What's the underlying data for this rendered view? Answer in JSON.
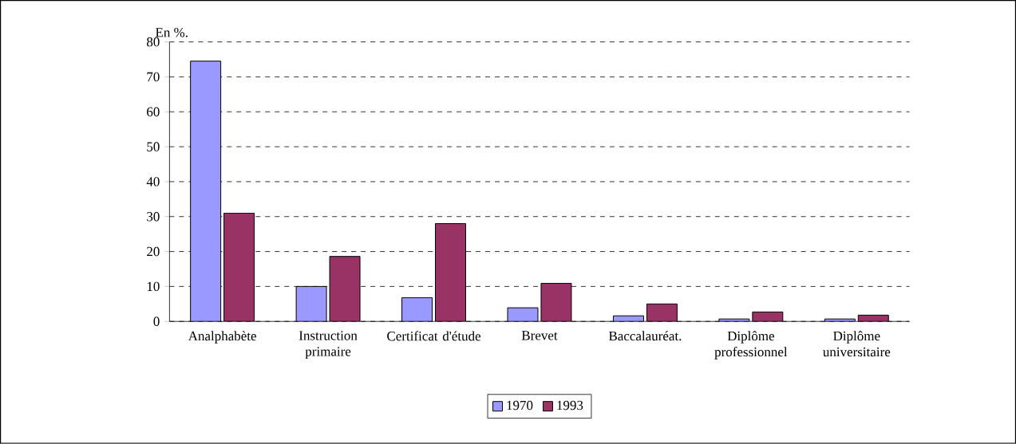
{
  "chart_data": {
    "type": "bar",
    "ylabel": "En %.",
    "categories": [
      "Analphabète",
      "Instruction primaire",
      "Certificat d'étude",
      "Brevet",
      "Baccalauréat.",
      "Diplôme professionnel",
      "Diplôme universitaire"
    ],
    "series": [
      {
        "name": "1970",
        "color": "#9999ff",
        "values": [
          74.5,
          10,
          6.8,
          3.9,
          1.6,
          0.7,
          0.7
        ]
      },
      {
        "name": "1993",
        "color": "#993366",
        "values": [
          31,
          18.6,
          28,
          10.9,
          5,
          2.7,
          1.8
        ]
      }
    ],
    "ylim": [
      0,
      80
    ],
    "yticks": [
      0,
      10,
      20,
      30,
      40,
      50,
      60,
      70,
      80
    ],
    "grid": "y",
    "legend": "bottom"
  }
}
